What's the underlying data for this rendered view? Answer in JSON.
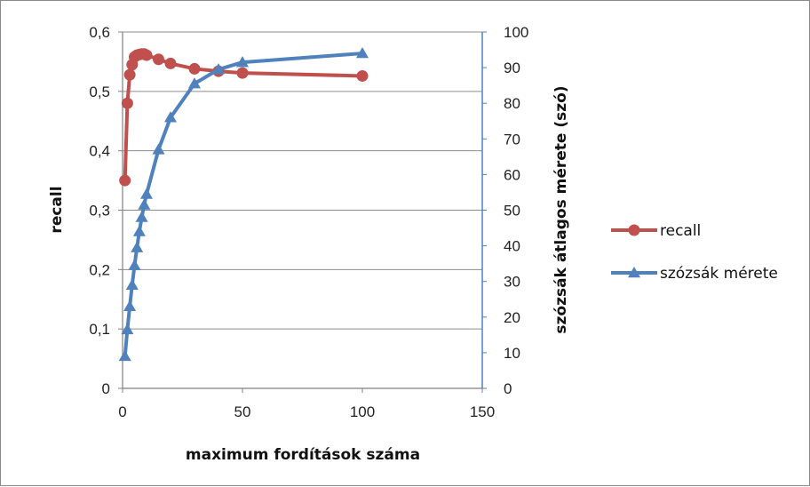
{
  "chart_data": {
    "type": "line",
    "title": "",
    "xlabel": "maximum fordítások száma",
    "ylabel_left": "recall",
    "ylabel_right": "szózsák átlagos mérete (szó)",
    "xlim": [
      0,
      150
    ],
    "ylim_left": [
      0,
      0.6
    ],
    "ylim_right": [
      0,
      100
    ],
    "x_ticks": [
      "0",
      "50",
      "100",
      "150"
    ],
    "y_left_ticks": [
      "0",
      "0,1",
      "0,2",
      "0,3",
      "0,4",
      "0,5",
      "0,6"
    ],
    "y_right_ticks": [
      "0",
      "10",
      "20",
      "30",
      "40",
      "50",
      "60",
      "70",
      "80",
      "90",
      "100"
    ],
    "grid": "horizontal",
    "legend_position": "right",
    "series": [
      {
        "name": "recall",
        "axis": "left",
        "color": "#c0504d",
        "marker": "circle",
        "x": [
          1,
          2,
          3,
          4,
          5,
          6,
          7,
          8,
          9,
          10,
          15,
          20,
          30,
          40,
          50,
          100
        ],
        "y": [
          0.35,
          0.48,
          0.528,
          0.545,
          0.558,
          0.561,
          0.562,
          0.563,
          0.563,
          0.561,
          0.554,
          0.547,
          0.538,
          0.534,
          0.531,
          0.526
        ]
      },
      {
        "name": "szózsák mérete",
        "axis": "right",
        "color": "#4f81bd",
        "marker": "triangle",
        "x": [
          1,
          2,
          3,
          4,
          5,
          6,
          7,
          8,
          9,
          10,
          15,
          20,
          30,
          40,
          50,
          100
        ],
        "y": [
          9,
          16.5,
          23,
          29,
          34.5,
          39.5,
          44,
          48,
          51.5,
          54.5,
          67,
          76,
          85.5,
          89.5,
          91.5,
          94
        ]
      }
    ]
  }
}
